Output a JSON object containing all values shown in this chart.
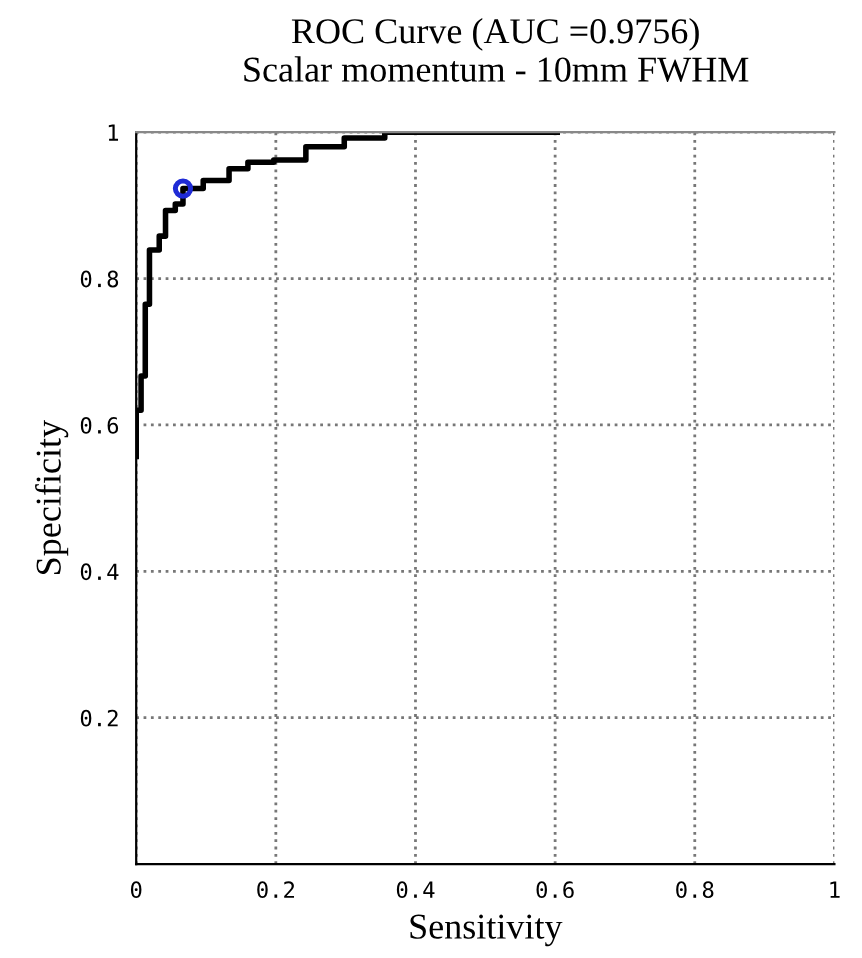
{
  "chart_data": {
    "type": "step",
    "title": "ROC Curve (AUC =0.9756)",
    "subtitle": "Scalar momentum - 10mm FWHM",
    "xlabel": "Sensitivity",
    "ylabel": "Specificity",
    "series": [
      {
        "color": "#000000",
        "x": [
          0,
          0,
          0.007,
          0.013,
          0.019,
          0.033,
          0.042,
          0.056,
          0.067,
          0.096,
          0.133,
          0.16,
          0.197,
          0.243,
          0.298,
          0.356,
          0.603
        ],
        "values": [
          0.557,
          0.62,
          0.667,
          0.765,
          0.839,
          0.858,
          0.893,
          0.902,
          0.923,
          0.934,
          0.95,
          0.959,
          0.962,
          0.98,
          0.992,
          1,
          1
        ]
      },
      {
        "type": "scatter",
        "color": "#1f2bd6",
        "marker": "circle",
        "x": [
          0.067
        ],
        "values": [
          0.923
        ]
      }
    ],
    "xlim": [
      0,
      1
    ],
    "ylim": [
      0,
      1
    ],
    "xticks": [
      0,
      0.2,
      0.4,
      0.6,
      0.8,
      1
    ],
    "yticks": [
      0.2,
      0.4,
      0.6,
      0.8,
      1
    ],
    "grid": true,
    "line_style": "solid"
  }
}
